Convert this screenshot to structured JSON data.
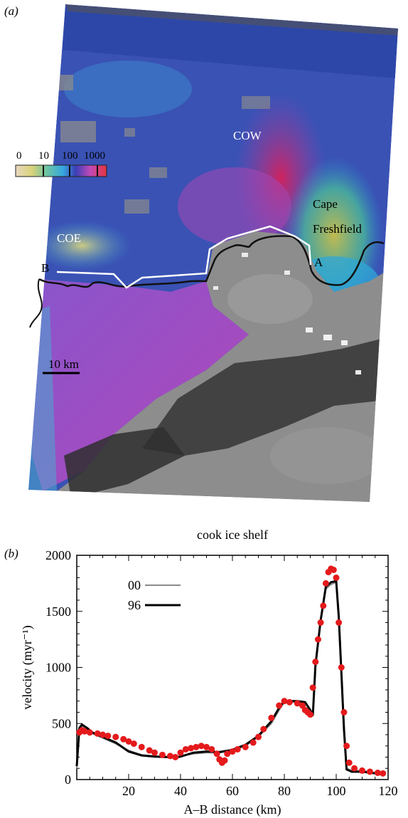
{
  "figure": {
    "panel_a_label": "(a)",
    "panel_b_label": "(b)"
  },
  "map": {
    "labels": {
      "cow": "COW",
      "coe": "COE",
      "cape_line1": "Cape",
      "cape_line2": "Freshfield",
      "point_a": "A",
      "point_b": "B"
    },
    "color_scale_ticks": [
      "0",
      "10",
      "100",
      "1000"
    ],
    "scale_bar_label": "10 km",
    "colors": {
      "profile_line": "#ffffff",
      "coastline": "#111111",
      "fast_ice": "#d6205a",
      "medium_ice": "#7a3fc0",
      "slow_ice": "#3a4fb0",
      "rock": "#8a8a8a"
    }
  },
  "chart_data": {
    "type": "line",
    "title": "cook ice shelf",
    "xlabel": "A–B distance (km)",
    "ylabel": "velocity (myr⁻¹)",
    "xlim": [
      0,
      120
    ],
    "ylim": [
      0,
      2000
    ],
    "xticks": [
      "20",
      "40",
      "60",
      "80",
      "100",
      "120"
    ],
    "yticks": [
      "0",
      "500",
      "1000",
      "1500",
      "2000"
    ],
    "legend_position": "upper-left",
    "series": [
      {
        "name": "00",
        "color": "#8a8a8a",
        "style": "line",
        "x": [
          0,
          1,
          2,
          4,
          6,
          10,
          15,
          20,
          25,
          30,
          35,
          38,
          40,
          45,
          50,
          55,
          60,
          65,
          70,
          75,
          78,
          80,
          85,
          88,
          90,
          91,
          92,
          94,
          96,
          98,
          100,
          101,
          102,
          103,
          104,
          106,
          110,
          115,
          118
        ],
        "y": [
          100,
          450,
          480,
          450,
          410,
          370,
          320,
          260,
          220,
          210,
          205,
          200,
          210,
          230,
          240,
          240,
          260,
          300,
          380,
          500,
          620,
          690,
          690,
          680,
          620,
          580,
          1000,
          1400,
          1700,
          1740,
          1760,
          1500,
          1000,
          500,
          100,
          80,
          80,
          60,
          50
        ]
      },
      {
        "name": "96",
        "color": "#000000",
        "style": "line",
        "x": [
          0,
          1,
          2,
          4,
          6,
          10,
          15,
          20,
          25,
          30,
          35,
          38,
          40,
          45,
          50,
          55,
          60,
          65,
          70,
          75,
          78,
          80,
          85,
          88,
          90,
          91,
          92,
          94,
          96,
          98,
          100,
          101,
          102,
          103,
          104,
          106,
          110,
          115,
          118
        ],
        "y": [
          120,
          460,
          490,
          460,
          420,
          380,
          330,
          250,
          215,
          205,
          200,
          195,
          205,
          240,
          250,
          245,
          265,
          310,
          390,
          520,
          640,
          700,
          700,
          690,
          620,
          570,
          1020,
          1420,
          1720,
          1760,
          1770,
          1450,
          950,
          450,
          90,
          70,
          70,
          55,
          45
        ]
      },
      {
        "name": "",
        "color": "#e41a1c",
        "style": "dots",
        "x": [
          1,
          2,
          3,
          5,
          8,
          10,
          12,
          15,
          18,
          20,
          22,
          25,
          28,
          30,
          33,
          36,
          38,
          40,
          42,
          44,
          46,
          48,
          50,
          52,
          54,
          55,
          56,
          57,
          58,
          60,
          62,
          65,
          68,
          70,
          72,
          75,
          78,
          80,
          82,
          85,
          87,
          88,
          89,
          90,
          91,
          92,
          93,
          94,
          95,
          96,
          97,
          98,
          99,
          100,
          101,
          102,
          103,
          104,
          105,
          107,
          110,
          113,
          116,
          118
        ],
        "y": [
          420,
          440,
          430,
          420,
          410,
          400,
          390,
          380,
          360,
          340,
          320,
          290,
          260,
          240,
          220,
          210,
          200,
          240,
          270,
          280,
          290,
          300,
          290,
          270,
          230,
          180,
          150,
          170,
          230,
          250,
          270,
          290,
          330,
          380,
          450,
          550,
          660,
          700,
          690,
          680,
          660,
          620,
          600,
          580,
          820,
          1050,
          1250,
          1400,
          1550,
          1750,
          1850,
          1880,
          1870,
          1800,
          1400,
          1000,
          600,
          300,
          150,
          100,
          80,
          70,
          60,
          55
        ]
      }
    ]
  }
}
